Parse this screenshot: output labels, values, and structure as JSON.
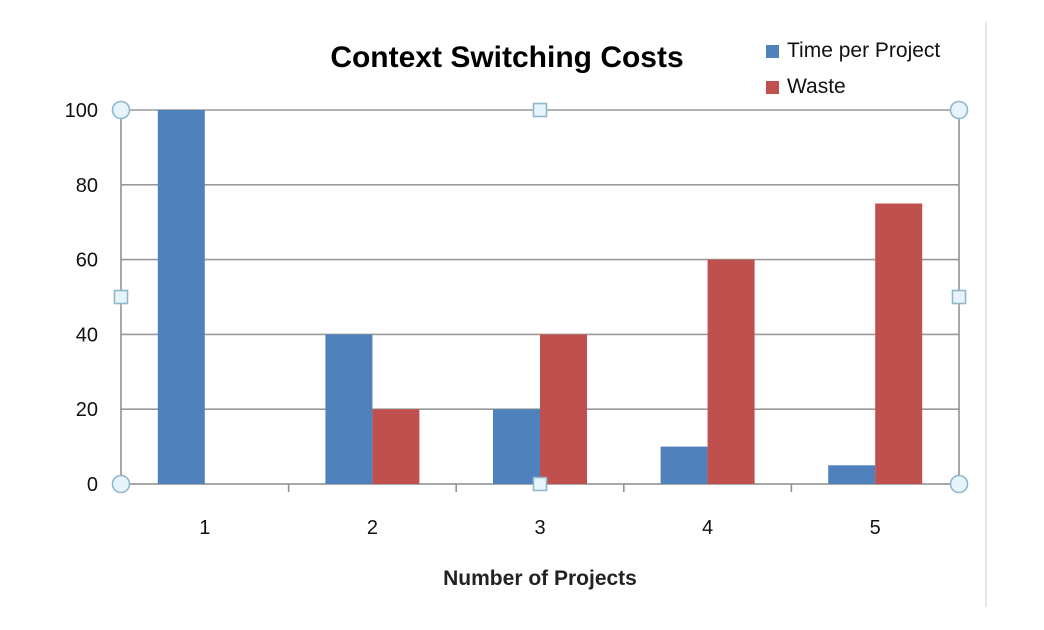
{
  "chart_data": {
    "type": "bar",
    "title": "Context Switching Costs",
    "xlabel": "Number of Projects",
    "ylabel": "",
    "categories": [
      "1",
      "2",
      "3",
      "4",
      "5"
    ],
    "series": [
      {
        "name": "Time per Project",
        "values": [
          100,
          40,
          20,
          10,
          5
        ],
        "color": "#4F81BD"
      },
      {
        "name": "Waste",
        "values": [
          0,
          20,
          40,
          60,
          75
        ],
        "color": "#C0504D"
      }
    ],
    "ylim": [
      0,
      100
    ],
    "yticks": [
      "0",
      "20",
      "40",
      "60",
      "80",
      "100"
    ],
    "grid": true,
    "legend_position": "top-right",
    "colors": {
      "grid": "#9a9a9a",
      "axis": "#8c8c8c",
      "text": "#000000",
      "handle_fill": "#e8f4fb",
      "handle_stroke": "#8fb8cc"
    }
  }
}
